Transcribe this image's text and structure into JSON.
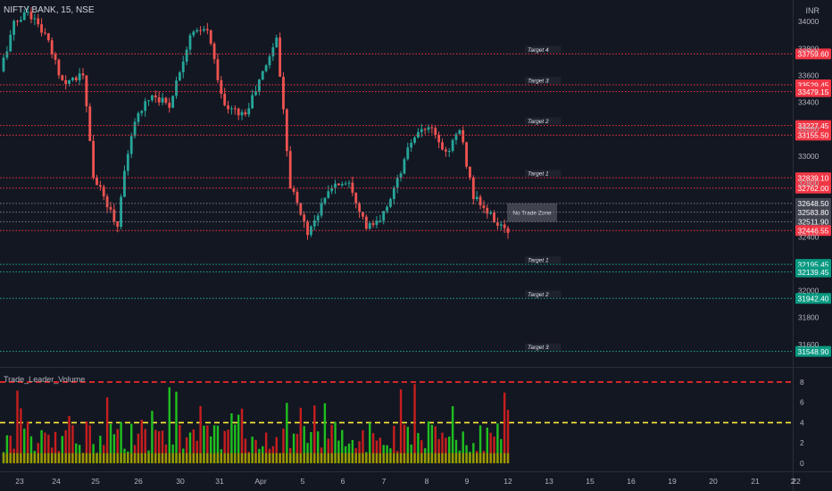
{
  "header": {
    "symbol": "NIFTY BANK, 15, NSE",
    "currency": "INR"
  },
  "indicator": {
    "title": "Trade_Leader_Volume"
  },
  "colors": {
    "bg": "#131722",
    "up": "#26a69a",
    "down": "#ef5350",
    "red_level": "#f23645",
    "green_level": "#22ab94",
    "gray_level": "#787b86",
    "vol_up": "#1fbf1f",
    "vol_down": "#c81e1e",
    "vol_base": "#9a9a00"
  },
  "chart_data": [
    {
      "type": "candlestick",
      "title": "NIFTY BANK, 15, NSE",
      "ylim": [
        31440,
        34160
      ],
      "price_ticks": [
        31600,
        31800,
        32000,
        32400,
        32800,
        33000,
        33200,
        33400,
        33600,
        33800,
        34000
      ],
      "x_ticks": [
        "23",
        "24",
        "25",
        "26",
        "30",
        "31",
        "Apr",
        "5",
        "6",
        "7",
        "8",
        "9",
        "12",
        "13",
        "15",
        "16",
        "19",
        "20",
        "21",
        "22",
        "2"
      ],
      "anchors": [
        [
          0,
          33630
        ],
        [
          4,
          33980
        ],
        [
          8,
          34080
        ],
        [
          13,
          33900
        ],
        [
          18,
          33560
        ],
        [
          24,
          33600
        ],
        [
          27,
          32850
        ],
        [
          34,
          32480
        ],
        [
          36,
          32920
        ],
        [
          40,
          33330
        ],
        [
          44,
          33460
        ],
        [
          49,
          33380
        ],
        [
          55,
          33900
        ],
        [
          60,
          33940
        ],
        [
          65,
          33360
        ],
        [
          71,
          33310
        ],
        [
          77,
          33680
        ],
        [
          80,
          33880
        ],
        [
          84,
          32790
        ],
        [
          89,
          32430
        ],
        [
          96,
          32780
        ],
        [
          101,
          32820
        ],
        [
          106,
          32470
        ],
        [
          110,
          32510
        ],
        [
          115,
          32820
        ],
        [
          119,
          33110
        ],
        [
          124,
          33220
        ],
        [
          129,
          33020
        ],
        [
          133,
          33200
        ],
        [
          137,
          32700
        ],
        [
          141,
          32580
        ],
        [
          146,
          32440
        ]
      ],
      "levels": [
        {
          "price": 33759.6,
          "label": "33759.60",
          "kind": "red",
          "zone": "Target 4"
        },
        {
          "price": 33529.45,
          "label": "33529.45",
          "kind": "red",
          "zone": "Target 3"
        },
        {
          "price": 33479.15,
          "label": "33479.15",
          "kind": "red",
          "zone": ""
        },
        {
          "price": 33227.45,
          "label": "33227.45",
          "kind": "red",
          "zone": "Target 2"
        },
        {
          "price": 33155.5,
          "label": "33155.50",
          "kind": "red",
          "zone": ""
        },
        {
          "price": 32839.1,
          "label": "32839.10",
          "kind": "red",
          "zone": "Target 1"
        },
        {
          "price": 32762.0,
          "label": "32762.00",
          "kind": "red",
          "zone": ""
        },
        {
          "price": 32648.5,
          "label": "32648.50",
          "kind": "gray",
          "zone": ""
        },
        {
          "price": 32583.8,
          "label": "32583.80",
          "kind": "gray",
          "zone": ""
        },
        {
          "price": 32511.9,
          "label": "32511.90",
          "kind": "gray",
          "zone": ""
        },
        {
          "price": 32446.55,
          "label": "32446.55",
          "kind": "red",
          "zone": ""
        },
        {
          "price": 32195.45,
          "label": "32195.45",
          "kind": "green",
          "zone": "Target 1"
        },
        {
          "price": 32139.45,
          "label": "32139.45",
          "kind": "green",
          "zone": ""
        },
        {
          "price": 31942.4,
          "label": "31942.40",
          "kind": "green",
          "zone": "Target 2"
        },
        {
          "price": 31548.9,
          "label": "31548.90",
          "kind": "green",
          "zone": "Target 3"
        }
      ],
      "no_trade_zone": {
        "label": "No Trade Zone",
        "top": 32648.5,
        "bottom": 32511.9
      }
    },
    {
      "type": "bar",
      "title": "Trade_Leader_Volume",
      "ylim": [
        -0.8,
        9.4
      ],
      "y_ticks": [
        0,
        2,
        4,
        6,
        8
      ],
      "reference_lines": [
        {
          "value": 8,
          "color": "red"
        },
        {
          "value": 4,
          "color": "yellow"
        }
      ],
      "base_value": 1
    }
  ]
}
